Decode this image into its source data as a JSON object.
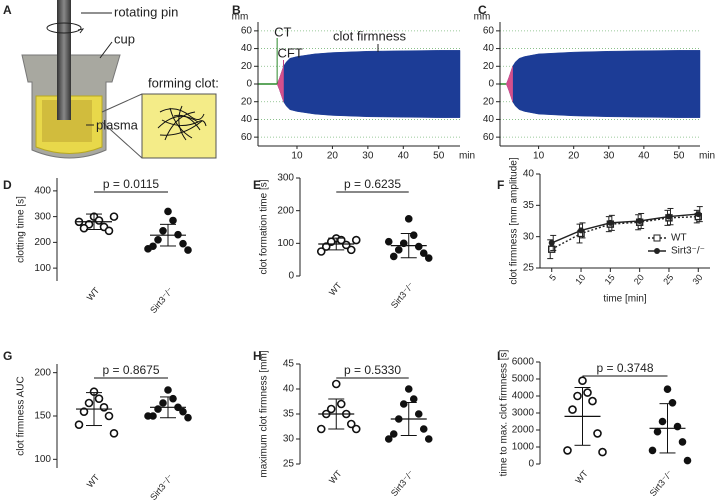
{
  "diagram": {
    "panel": "A",
    "labels": [
      "rotating pin",
      "cup",
      "forming clot:",
      "plasma"
    ]
  },
  "chart_data": [
    {
      "type": "trace",
      "panel": "B",
      "ylabel": "mm",
      "xlabel": "min",
      "xlim": [
        -1,
        56
      ],
      "ylim": [
        -70,
        70
      ],
      "xticks": [
        10,
        20,
        30,
        40,
        50
      ],
      "yticks": [
        60,
        40,
        20,
        0,
        {
          "value": -20,
          "label": "20"
        },
        {
          "value": -40,
          "label": "40"
        },
        {
          "value": -60,
          "label": "60"
        }
      ],
      "grid": true,
      "annotations": [
        "CT",
        "CFT",
        "clot firmness"
      ],
      "x": [
        4.4,
        5,
        5.6,
        6.2,
        7,
        8,
        10,
        15,
        20,
        30,
        40,
        50,
        56
      ],
      "values": [
        0,
        6,
        13,
        20,
        25,
        29,
        31,
        34,
        35.5,
        37,
        37.5,
        38,
        38
      ],
      "color": "#1c3c96",
      "cft": {
        "x": [
          4.4,
          5,
          5.6,
          6.2
        ],
        "values": [
          0,
          6,
          13,
          20
        ],
        "color": "#d4508c"
      }
    },
    {
      "type": "trace",
      "panel": "C",
      "ylabel": "mm",
      "xlabel": "min",
      "xlim": [
        -1,
        56
      ],
      "ylim": [
        -70,
        70
      ],
      "xticks": [
        10,
        20,
        30,
        40,
        50
      ],
      "yticks": [
        60,
        40,
        20,
        0,
        {
          "value": -20,
          "label": "20"
        },
        {
          "value": -40,
          "label": "40"
        },
        {
          "value": -60,
          "label": "60"
        }
      ],
      "grid": true,
      "x": [
        0.8,
        1.4,
        2,
        2.6,
        3.4,
        4.5,
        6,
        10,
        20,
        30,
        40,
        50,
        56
      ],
      "values": [
        0,
        6,
        13,
        20,
        25,
        29,
        31,
        34,
        36,
        37,
        37.5,
        38,
        38
      ],
      "color": "#1c3c96",
      "cft": {
        "x": [
          0.8,
          1.4,
          2,
          2.6
        ],
        "values": [
          0,
          6,
          13,
          20
        ],
        "color": "#d4508c"
      }
    },
    {
      "type": "dot",
      "panel": "D",
      "ylabel": "clotting time [s]",
      "categories": [
        "WT",
        "Sirt3⁻/⁻"
      ],
      "ylim": [
        50,
        450
      ],
      "yticks": [
        100,
        200,
        300,
        400
      ],
      "annotation": "p = 0.0115",
      "markers": [
        "open",
        "filled"
      ],
      "groups": [
        {
          "values": [
            300,
            285,
            270,
            260,
            255,
            245,
            280,
            300
          ],
          "mean": 280,
          "sd": 30
        },
        {
          "values": [
            320,
            285,
            245,
            230,
            210,
            195,
            185,
            170,
            175
          ],
          "mean": 228,
          "sd": 42
        }
      ]
    },
    {
      "type": "dot",
      "panel": "E",
      "ylabel": "clot formation time [s]",
      "categories": [
        "WT",
        "Sirt3⁻/⁻"
      ],
      "ylim": [
        0,
        300
      ],
      "yticks": [
        0,
        100,
        200,
        300
      ],
      "annotation": "p = 0.6235",
      "markers": [
        "open",
        "filled"
      ],
      "groups": [
        {
          "values": [
            115,
            110,
            105,
            95,
            90,
            80,
            75,
            110
          ],
          "mean": 98,
          "sd": 18
        },
        {
          "values": [
            175,
            125,
            100,
            90,
            80,
            70,
            60,
            55,
            105
          ],
          "mean": 93,
          "sd": 37
        }
      ]
    },
    {
      "type": "line",
      "panel": "F",
      "xlabel": "time [min]",
      "ylabel": "clot firmness [mm amplitude]",
      "x": [
        5,
        10,
        15,
        20,
        25,
        30
      ],
      "xlim": [
        3,
        32
      ],
      "xticks": [
        5,
        10,
        15,
        20,
        25,
        30
      ],
      "ylim": [
        25,
        40
      ],
      "yticks": [
        25,
        30,
        35,
        40
      ],
      "legend": "lower right",
      "series": [
        {
          "name": "WT",
          "color": "#222222",
          "dashed": true,
          "marker": "square",
          "values": [
            28,
            30.5,
            32,
            32.3,
            33,
            33.2
          ],
          "errors": [
            1.5,
            1.5,
            1.2,
            1.2,
            1.2,
            1.0
          ]
        },
        {
          "name": "Sirt3⁻/⁻",
          "color": "#222222",
          "dashed": false,
          "marker": "circle",
          "values": [
            29,
            31,
            32.2,
            32.5,
            33.2,
            33.6
          ],
          "errors": [
            1.2,
            1.2,
            1.2,
            1.2,
            1.3,
            1.2
          ]
        }
      ]
    },
    {
      "type": "dot",
      "panel": "G",
      "ylabel": "clot firmness AUC",
      "categories": [
        "WT",
        "Sirt3⁻/⁻"
      ],
      "ylim": [
        90,
        210
      ],
      "yticks": [
        100,
        150,
        200
      ],
      "annotation": "p = 0.8675",
      "markers": [
        "open",
        "filled"
      ],
      "groups": [
        {
          "values": [
            178,
            170,
            165,
            160,
            155,
            150,
            140,
            130
          ],
          "mean": 158,
          "sd": 19
        },
        {
          "values": [
            180,
            170,
            165,
            160,
            158,
            155,
            150,
            148,
            150
          ],
          "mean": 160,
          "sd": 12
        }
      ]
    },
    {
      "type": "dot",
      "panel": "H",
      "ylabel": "maximum clot firmness [mm]",
      "categories": [
        "WT",
        "Sirt3⁻/⁻"
      ],
      "ylim": [
        25,
        45
      ],
      "yticks": [
        25,
        30,
        35,
        40,
        45
      ],
      "annotation": "p = 0.5330",
      "markers": [
        "open",
        "filled"
      ],
      "groups": [
        {
          "values": [
            41,
            37,
            36,
            35,
            35,
            33,
            32,
            32
          ],
          "mean": 35,
          "sd": 3
        },
        {
          "values": [
            40,
            38,
            37,
            35,
            34,
            32,
            31,
            30,
            30
          ],
          "mean": 34,
          "sd": 3.3
        }
      ]
    },
    {
      "type": "dot",
      "panel": "I",
      "ylabel": "time to max. clot firmness [s]",
      "categories": [
        "WT",
        "Sirt3⁻/⁻"
      ],
      "ylim": [
        0,
        6000
      ],
      "yticks": [
        0,
        1000,
        2000,
        3000,
        4000,
        5000,
        6000
      ],
      "annotation": "p = 0.3748",
      "markers": [
        "open",
        "filled"
      ],
      "groups": [
        {
          "values": [
            4900,
            4200,
            4000,
            3700,
            3200,
            1800,
            800,
            700
          ],
          "mean": 2800,
          "sd": 1700
        },
        {
          "values": [
            4400,
            3600,
            2500,
            2200,
            1900,
            1300,
            800,
            200
          ],
          "mean": 2100,
          "sd": 1450
        }
      ]
    }
  ]
}
